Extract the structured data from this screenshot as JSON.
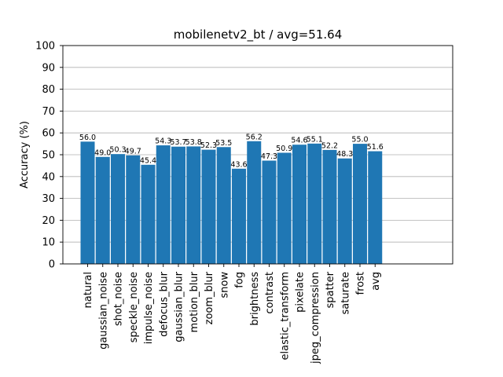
{
  "chart_data": {
    "type": "bar",
    "title": "mobilenetv2_bt / avg=51.64",
    "xlabel": "",
    "ylabel": "Accuracy (%)",
    "ylim": [
      0,
      100
    ],
    "yticks": [
      0,
      10,
      20,
      30,
      40,
      50,
      60,
      70,
      80,
      90,
      100
    ],
    "grid": "y",
    "bar_color": "#1f77b4",
    "categories": [
      "natural",
      "gaussian_noise",
      "shot_noise",
      "speckle_noise",
      "impulse_noise",
      "defocus_blur",
      "gaussian_blur",
      "motion_blur",
      "zoom_blur",
      "snow",
      "fog",
      "brightness",
      "contrast",
      "elastic_transform",
      "pixelate",
      "jpeg_compression",
      "spatter",
      "saturate",
      "frost",
      "avg"
    ],
    "values": [
      56.0,
      49.0,
      50.3,
      49.7,
      45.4,
      54.3,
      53.7,
      53.8,
      52.3,
      53.5,
      43.6,
      56.2,
      47.3,
      50.9,
      54.6,
      55.1,
      52.2,
      48.3,
      55.0,
      51.6
    ],
    "value_labels": [
      "56.0",
      "49.0",
      "50.3",
      "49.7",
      "45.4",
      "54.3",
      "53.7",
      "53.8",
      "52.3",
      "53.5",
      "43.6",
      "56.2",
      "47.3",
      "50.9",
      "54.6",
      "55.1",
      "52.2",
      "48.3",
      "55.0",
      "51.6"
    ]
  }
}
